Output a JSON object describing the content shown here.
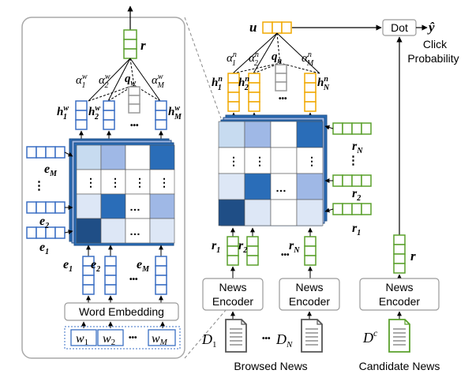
{
  "colors": {
    "blue": "#3a6fc4",
    "green": "#5aa02c",
    "orange": "#f0a800",
    "gray": "#9a9a9a",
    "panel_border": "#a9a9a9",
    "heat": [
      "#c7dbf0",
      "#9fb8e6",
      "#ffffff",
      "#2a6db8",
      "#dde7f6",
      "#1f4e86"
    ]
  },
  "word_encoder": {
    "r": "r",
    "attn_w1": "α",
    "attn_w1_sup": "w",
    "attn_w1_sub": "1",
    "attn_w2": "α",
    "attn_w2_sup": "w",
    "attn_w2_sub": "2",
    "attn_wm": "α",
    "attn_wm_sup": "w",
    "attn_wm_sub": "M",
    "q_w": "q",
    "q_w_sub": "w",
    "h1": "h",
    "h1_sup": "w",
    "h1_sub": "1",
    "h2": "h",
    "h2_sup": "w",
    "h2_sub": "2",
    "hm": "h",
    "hm_sup": "w",
    "hm_sub": "M",
    "e_m_left": "e",
    "e_m_left_sub": "M",
    "e_2_left": "e",
    "e_2_left_sub": "2",
    "e_1_left": "e",
    "e_1_left_sub": "1",
    "e1": "e",
    "e1_sub": "1",
    "e2": "e",
    "e2_sub": "2",
    "em": "e",
    "em_sub": "M",
    "word_embedding": "Word Embedding",
    "w1": "w",
    "w1_sub": "1",
    "w2": "w",
    "w2_sub": "2",
    "wm": "w",
    "wm_sub": "M",
    "dots": "•••",
    "vdots": "⋮",
    "hdots": "…"
  },
  "news_encoder": {
    "u": "u",
    "alpha_1": "α",
    "alpha_1_sup": "n",
    "alpha_1_sub": "1",
    "alpha_2": "α",
    "alpha_2_sup": "n",
    "alpha_2_sub": "2",
    "alpha_m": "α",
    "alpha_m_sup": "n",
    "alpha_m_sub": "M",
    "q_n": "q",
    "q_n_sub": "n",
    "h1": "h",
    "h1_sup": "n",
    "h1_sub": "1",
    "h2": "h",
    "h2_sup": "n",
    "h2_sub": "2",
    "hn": "h",
    "hn_sup": "n",
    "hn_sub": "N",
    "r_n_right": "r",
    "r_n_right_sub": "N",
    "r_2_right": "r",
    "r_2_right_sub": "2",
    "r_1_right": "r",
    "r_1_right_sub": "1",
    "r1": "r",
    "r1_sub": "1",
    "r2": "r",
    "r2_sub": "2",
    "rn": "r",
    "rn_sub": "N",
    "news_encoder_line1": "News",
    "news_encoder_line2": "Encoder",
    "d1": "D",
    "d1_sub": "1",
    "dn": "D",
    "dn_sub": "N",
    "browsed_news": "Browsed News"
  },
  "candidate": {
    "dot": "Dot",
    "y_hat": "ŷ",
    "click_probability_line1": "Click",
    "click_probability_line2": "Probability",
    "r": "r",
    "news_encoder_line1": "News",
    "news_encoder_line2": "Encoder",
    "dc": "D",
    "dc_sup": "c",
    "candidate_news": "Candidate News"
  }
}
